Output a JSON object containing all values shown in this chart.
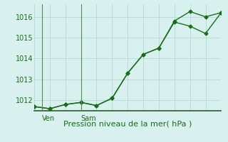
{
  "line1_x": [
    0,
    1,
    2,
    3,
    4,
    5,
    6,
    7,
    8,
    9,
    10,
    11,
    12
  ],
  "line1_y": [
    1011.7,
    1011.6,
    1011.8,
    1011.9,
    1011.75,
    1012.1,
    1013.3,
    1014.2,
    1014.5,
    1015.75,
    1015.55,
    1015.2,
    1016.2
  ],
  "line2_x": [
    0,
    1,
    2,
    3,
    4,
    5,
    6,
    7,
    8,
    9,
    10,
    11,
    12
  ],
  "line2_y": [
    1011.7,
    1011.6,
    1011.8,
    1011.9,
    1011.75,
    1012.1,
    1013.3,
    1014.2,
    1014.5,
    1015.8,
    1016.25,
    1016.0,
    1016.2
  ],
  "line_color": "#1a6e1a",
  "bg_color": "#d8f0ee",
  "grid_color": "#b8dcd8",
  "day_line_color": "#5a8a5a",
  "axis_color": "#2a5a2a",
  "xlabel": "Pression niveau de la mer( hPa )",
  "ylim": [
    1011.5,
    1016.6
  ],
  "yticks": [
    1012,
    1013,
    1014,
    1015,
    1016
  ],
  "xlim": [
    0,
    12
  ],
  "ven_x": 0.5,
  "sam_x": 3.0,
  "tick_label_color": "#1a6e1a",
  "xlabel_color": "#1a6e1a",
  "xlabel_fontsize": 8,
  "day_label_fontsize": 7
}
